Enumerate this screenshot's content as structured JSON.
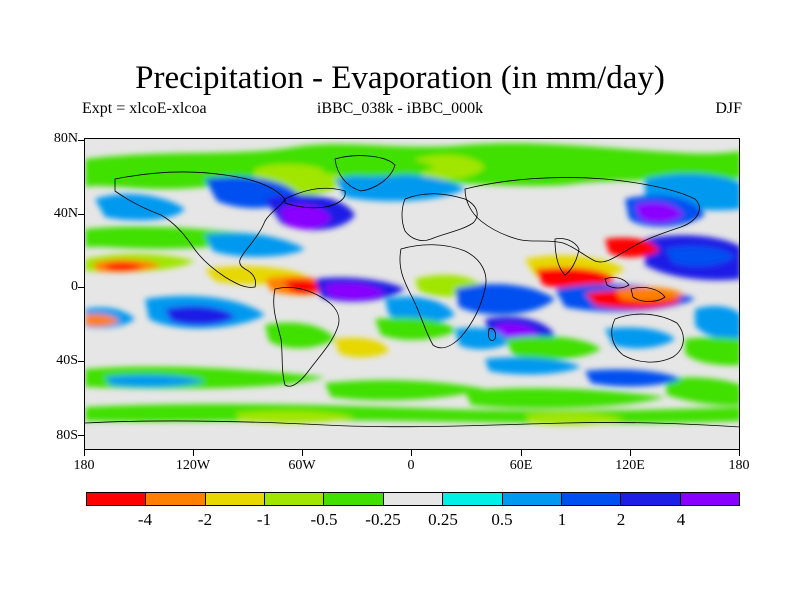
{
  "title": "Precipitation - Evaporation (in mm/day)",
  "subtitle_left": "Expt = xlcoE-xlcoa",
  "subtitle_center": "iBBC_038k - iBBC_000k",
  "subtitle_right": "DJF",
  "y_ticks": [
    "80N",
    "40N",
    "0",
    "40S",
    "80S"
  ],
  "x_ticks": [
    "180",
    "120W",
    "60W",
    "0",
    "60E",
    "120E",
    "180"
  ],
  "colorbar": {
    "colors": [
      "#ff0000",
      "#ff8000",
      "#e6d800",
      "#a0e600",
      "#40e000",
      "#e6e6e6",
      "#00f0e6",
      "#0099f0",
      "#0050f0",
      "#1e1ee6",
      "#8a00ff"
    ],
    "labels": [
      "-4",
      "-2",
      "-1",
      "-0.5",
      "-0.25",
      "0.25",
      "0.5",
      "1",
      "2",
      "4"
    ]
  },
  "colors": {
    "land_outline": "#000000",
    "background": "#e6e6e6"
  }
}
